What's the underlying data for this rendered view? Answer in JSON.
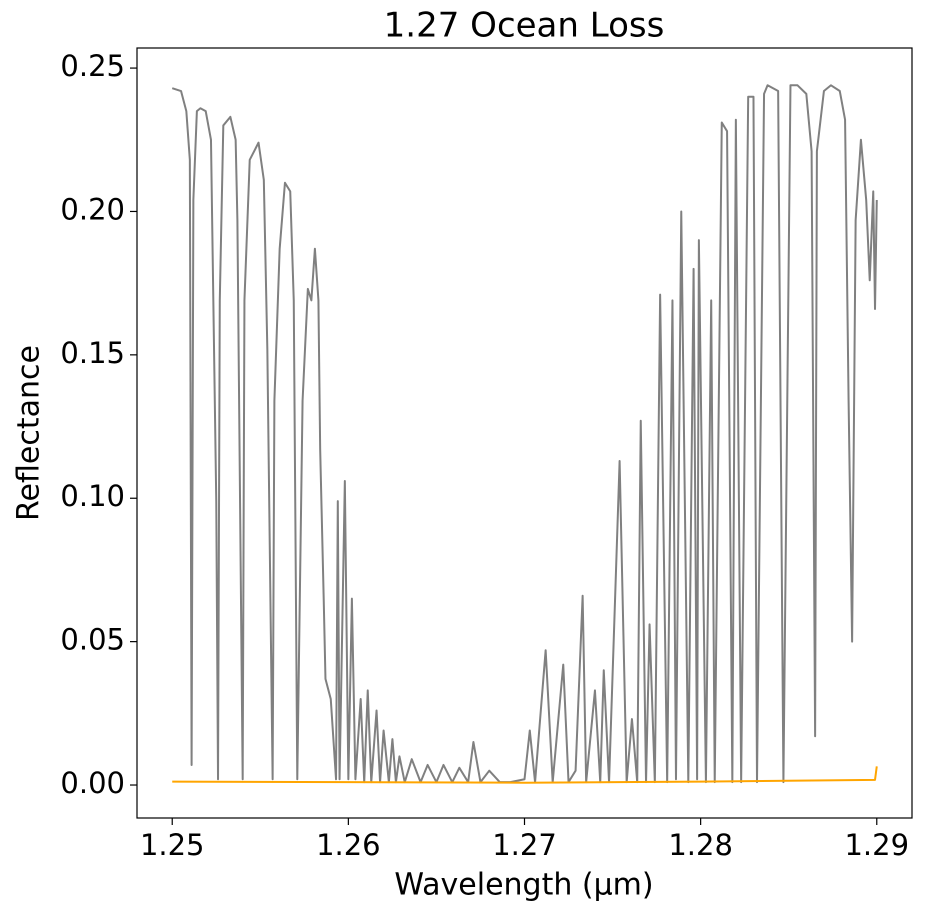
{
  "chart_data": {
    "type": "line",
    "title": "1.27 Ocean Loss",
    "xlabel": "Wavelength (μm)",
    "ylabel": "Reflectance",
    "xlim": [
      1.248,
      1.292
    ],
    "ylim": [
      -0.0115,
      0.257
    ],
    "xticks": [
      1.25,
      1.26,
      1.27,
      1.28,
      1.29
    ],
    "yticks": [
      {
        "value": 0,
        "label": "0.00"
      },
      0.05,
      {
        "value": 0.1,
        "label": "0.10"
      },
      0.15,
      {
        "value": 0.2,
        "label": "0.20"
      },
      0.25
    ],
    "grid": false,
    "series": [
      {
        "color": "#808080",
        "x": [
          1.25,
          1.2505,
          1.2508,
          1.251,
          1.2511,
          1.2512,
          1.2514,
          1.2516,
          1.2519,
          1.2522,
          1.2525,
          1.2526,
          1.2527,
          1.2529,
          1.2533,
          1.2536,
          1.2537,
          1.254,
          1.2541,
          1.2544,
          1.2549,
          1.2552,
          1.2554,
          1.2557,
          1.2558,
          1.2561,
          1.2564,
          1.2567,
          1.2569,
          1.2571,
          1.2574,
          1.2577,
          1.2579,
          1.2581,
          1.2583,
          1.2584,
          1.2586,
          1.2587,
          1.259,
          1.2593,
          1.2594,
          1.2595,
          1.2598,
          1.26,
          1.2602,
          1.2604,
          1.2607,
          1.2609,
          1.2611,
          1.2613,
          1.2616,
          1.2618,
          1.262,
          1.2623,
          1.2625,
          1.2627,
          1.2629,
          1.2632,
          1.2636,
          1.2641,
          1.2645,
          1.265,
          1.2654,
          1.2659,
          1.2663,
          1.2668,
          1.2671,
          1.2675,
          1.268,
          1.2686,
          1.2692,
          1.27,
          1.2703,
          1.2706,
          1.2712,
          1.2716,
          1.2722,
          1.2725,
          1.2729,
          1.2733,
          1.2735,
          1.274,
          1.2743,
          1.2745,
          1.2748,
          1.2754,
          1.2758,
          1.2761,
          1.2764,
          1.2766,
          1.2769,
          1.2771,
          1.2774,
          1.2777,
          1.2781,
          1.2784,
          1.2786,
          1.2789,
          1.2793,
          1.2796,
          1.2798,
          1.2799,
          1.2803,
          1.2806,
          1.2808,
          1.2812,
          1.2815,
          1.2818,
          1.282,
          1.2823,
          1.2827,
          1.283,
          1.2832,
          1.2836,
          1.2838,
          1.2844,
          1.2847,
          1.2851,
          1.2855,
          1.286,
          1.2863,
          1.2865,
          1.2866,
          1.287,
          1.2874,
          1.2879,
          1.2882,
          1.2884,
          1.2886,
          1.2888,
          1.2891,
          1.2894,
          1.2896,
          1.2898,
          1.2899,
          1.29
        ],
        "values": [
          0.243,
          0.242,
          0.235,
          0.218,
          0.007,
          0.204,
          0.235,
          0.236,
          0.235,
          0.225,
          0.099,
          0.002,
          0.169,
          0.23,
          0.233,
          0.225,
          0.197,
          0.002,
          0.169,
          0.218,
          0.224,
          0.211,
          0.152,
          0.002,
          0.134,
          0.187,
          0.21,
          0.207,
          0.169,
          0.002,
          0.134,
          0.173,
          0.169,
          0.187,
          0.169,
          0.117,
          0.065,
          0.037,
          0.03,
          0.002,
          0.099,
          0.002,
          0.106,
          0.002,
          0.065,
          0.002,
          0.03,
          0.001,
          0.033,
          0.001,
          0.026,
          0.001,
          0.019,
          0.001,
          0.016,
          0.001,
          0.01,
          0.001,
          0.009,
          0.001,
          0.007,
          0.001,
          0.007,
          0.001,
          0.006,
          0.001,
          0.015,
          0.001,
          0.005,
          0.001,
          0.001,
          0.002,
          0.019,
          0.001,
          0.047,
          0.001,
          0.042,
          0.001,
          0.005,
          0.066,
          0.001,
          0.033,
          0.001,
          0.04,
          0.001,
          0.113,
          0.001,
          0.023,
          0.001,
          0.127,
          0.001,
          0.056,
          0.001,
          0.171,
          0.001,
          0.169,
          0.002,
          0.2,
          0.001,
          0.18,
          0.002,
          0.19,
          0.001,
          0.169,
          0.001,
          0.231,
          0.228,
          0.001,
          0.232,
          0.001,
          0.24,
          0.24,
          0.001,
          0.241,
          0.244,
          0.242,
          0.001,
          0.244,
          0.244,
          0.241,
          0.221,
          0.017,
          0.221,
          0.242,
          0.244,
          0.242,
          0.232,
          0.134,
          0.05,
          0.197,
          0.225,
          0.204,
          0.176,
          0.207,
          0.166,
          0.204
        ]
      },
      {
        "color": "#ffa500",
        "x": [
          1.25,
          1.26,
          1.27,
          1.28,
          1.2899,
          1.29
        ],
        "values": [
          0.0012,
          0.001,
          0.0008,
          0.0012,
          0.0018,
          0.0065
        ]
      }
    ]
  }
}
